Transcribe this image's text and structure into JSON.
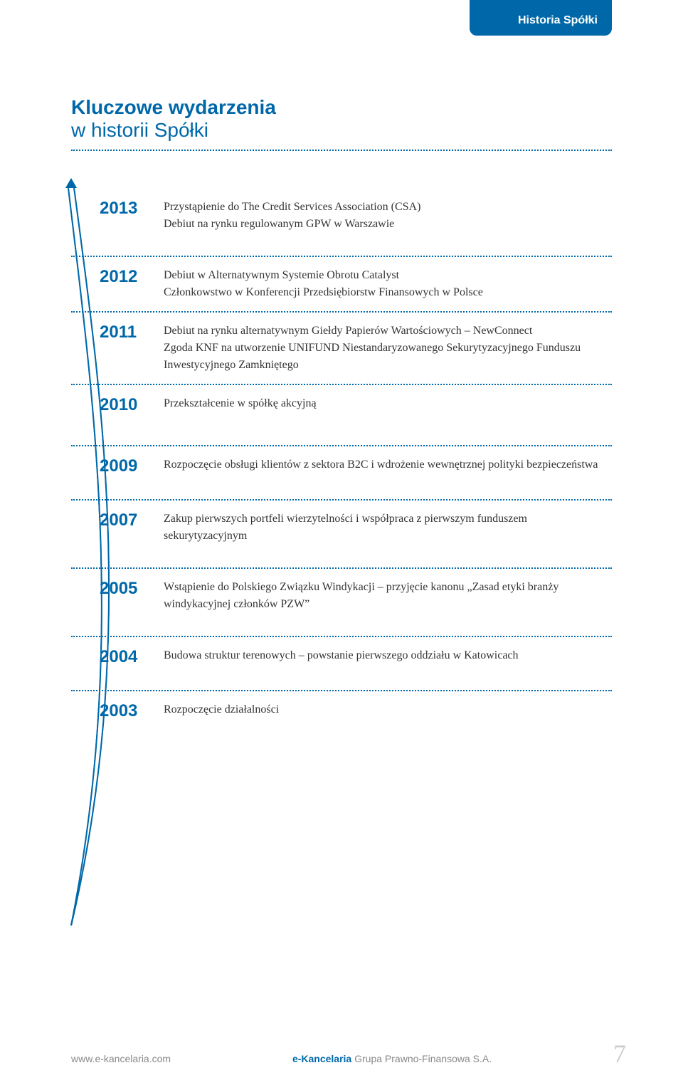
{
  "colors": {
    "primary": "#0068a9",
    "text": "#333333",
    "muted": "#888888",
    "page_num": "#cccccc",
    "curve_stroke": "#0068a9",
    "curve_fill": "#ffffff"
  },
  "tab": {
    "label": "Historia Spółki"
  },
  "heading": {
    "line1": "Kluczowe wydarzenia",
    "line2": "w historii Spółki"
  },
  "timeline": [
    {
      "year": "2013",
      "text": "Przystąpienie do The Credit Services Association (CSA)\nDebiut na rynku regulowanym GPW w Warszawie"
    },
    {
      "year": "2012",
      "text": "Debiut w Alternatywnym Systemie Obrotu Catalyst\nCzłonkowstwo w Konferencji Przedsiębiorstw Finansowych w Polsce"
    },
    {
      "year": "2011",
      "text": "Debiut na rynku alternatywnym Giełdy Papierów Wartościowych – NewConnect\nZgoda KNF na utworzenie UNIFUND Niestandaryzowanego Sekurytyzacyjnego Funduszu Inwestycyjnego Zamkniętego"
    },
    {
      "year": "2010",
      "text": "Przekształcenie w spółkę akcyjną"
    },
    {
      "year": "2009",
      "text": "Rozpoczęcie obsługi klientów z sektora B2C i wdrożenie wewnętrznej polityki bezpieczeństwa"
    },
    {
      "year": "2007",
      "text": "Zakup pierwszych portfeli wierzytelności i współpraca z pierwszym funduszem sekurytyzacyjnym"
    },
    {
      "year": "2005",
      "text": "Wstąpienie do Polskiego Związku Windykacji – przyjęcie kanonu „Zasad etyki branży windykacyjnej członków PZW”"
    },
    {
      "year": "2004",
      "text": "Budowa struktur terenowych – powstanie pierwszego oddziału w Katowicach"
    },
    {
      "year": "2003",
      "text": "Rozpoczęcie działalności"
    }
  ],
  "footer": {
    "url": "www.e-kancelaria.com",
    "brand": "e-Kancelaria",
    "brand_suffix": " Grupa Prawno-Finansowa S.A.",
    "page": "7"
  }
}
